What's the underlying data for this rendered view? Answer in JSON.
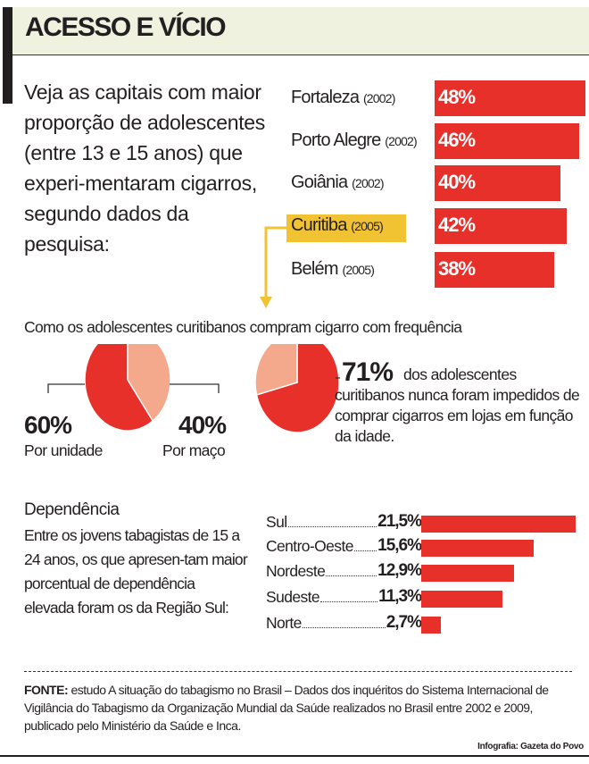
{
  "title": "ACESSO E VÍCIO",
  "intro": "Veja as capitais com maior proporção de adolescentes (entre 13 e 15 anos) que experi-mentaram cigarros, segundo dados da pesquisa:",
  "colors": {
    "red": "#e8302a",
    "salmon": "#f4a98c",
    "yellow": "#f1c232",
    "header_bg": "#eef2df"
  },
  "chart_data": [
    {
      "type": "bar",
      "orientation": "horizontal",
      "categories": [
        "Fortaleza",
        "Porto Alegre",
        "Goiânia",
        "Curitiba",
        "Belém"
      ],
      "years": [
        "(2002)",
        "(2002)",
        "(2002)",
        "(2005)",
        "(2005)"
      ],
      "values": [
        48,
        46,
        40,
        42,
        38
      ],
      "labels": [
        "48%",
        "46%",
        "40%",
        "42%",
        "38%"
      ],
      "highlight": "Curitiba"
    },
    {
      "type": "pie",
      "title": "Como os adolescentes curitibanos compram cigarro com frequência",
      "slices": [
        {
          "label": "Por unidade",
          "value": 60,
          "text": "60%"
        },
        {
          "label": "Por maço",
          "value": 40,
          "text": "40%"
        }
      ]
    },
    {
      "type": "pie",
      "slices": [
        {
          "value": 71,
          "text": "71%"
        },
        {
          "value": 29
        }
      ],
      "description": "dos adolescentes curitibanos nunca foram impedidos de comprar cigarros em lojas em função da idade."
    },
    {
      "type": "bar",
      "orientation": "horizontal",
      "title": "Dependência",
      "description": "Entre os jovens tabagistas de 15 a 24 anos, os que apresen-tam maior porcentual de dependência elevada foram os da Região Sul:",
      "categories": [
        "Sul",
        "Centro-Oeste",
        "Nordeste",
        "Sudeste",
        "Norte"
      ],
      "values": [
        21.5,
        15.6,
        12.9,
        11.3,
        2.7
      ],
      "labels": [
        "21,5%",
        "15,6%",
        "12,9%",
        "11,3%",
        "2,7%"
      ]
    }
  ],
  "fonte_label": "FONTE:",
  "fonte_text": " estudo A situação do tabagismo no Brasil – Dados dos inquéritos do Sistema Internacional de Vigilância do Tabagismo da Organização Mundial da Saúde realizados no Brasil entre 2002 e 2009, publicado pelo Ministério da Saúde e Inca.",
  "credit": "Infografia: Gazeta do Povo"
}
